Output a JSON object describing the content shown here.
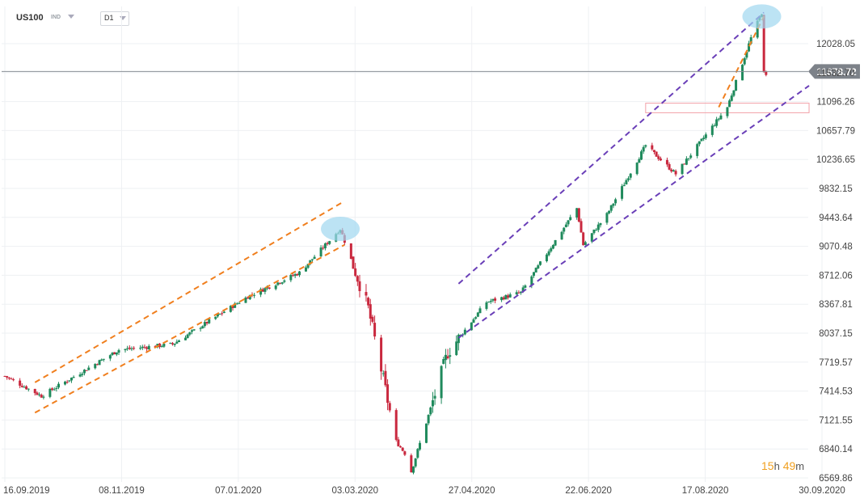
{
  "header": {
    "symbol": "US100",
    "exchange": "IND",
    "timeframe": "D1"
  },
  "countdown": {
    "hours": "15",
    "h_unit": "h",
    "minutes": "49",
    "m_unit": "m"
  },
  "chart_data": {
    "type": "candlestick",
    "symbol": "US100",
    "timeframe": "D1",
    "current_price": 11678.72,
    "current_price_label": "11678.72",
    "y_ticks": [
      "12028.05",
      "11532.70",
      "11096.26",
      "10657.79",
      "10236.65",
      "9832.15",
      "9443.64",
      "9070.48",
      "8712.06",
      "8367.81",
      "8037.15",
      "7719.57",
      "7414.53",
      "7121.55",
      "6840.14",
      "6569.86"
    ],
    "x_ticks": [
      "16.09.2019",
      "08.11.2019",
      "07.01.2020",
      "03.03.2020",
      "27.04.2020",
      "22.06.2020",
      "17.08.2020",
      "30.09.2020"
    ],
    "series_colors": {
      "up": "#1f8a5c",
      "down": "#c9283e"
    },
    "key_levels": [
      {
        "date": "2019-09-16",
        "close": 7850
      },
      {
        "date": "2019-10-03",
        "close": 7600
      },
      {
        "date": "2019-11-08",
        "close": 8180
      },
      {
        "date": "2019-12-03",
        "close": 8250
      },
      {
        "date": "2020-01-07",
        "close": 8850
      },
      {
        "date": "2020-01-31",
        "close": 9150
      },
      {
        "date": "2020-02-19",
        "close": 9700
      },
      {
        "date": "2020-03-03",
        "close": 8700
      },
      {
        "date": "2020-03-16",
        "close": 7030
      },
      {
        "date": "2020-03-20",
        "close": 6880
      },
      {
        "date": "2020-03-23",
        "close": 6650
      },
      {
        "date": "2020-04-09",
        "close": 8150
      },
      {
        "date": "2020-04-27",
        "close": 8780
      },
      {
        "date": "2020-05-13",
        "close": 8900
      },
      {
        "date": "2020-06-08",
        "close": 9960
      },
      {
        "date": "2020-06-11",
        "close": 9500
      },
      {
        "date": "2020-06-22",
        "close": 9880
      },
      {
        "date": "2020-07-10",
        "close": 10750
      },
      {
        "date": "2020-07-24",
        "close": 10390
      },
      {
        "date": "2020-08-17",
        "close": 11230
      },
      {
        "date": "2020-08-28",
        "close": 12100
      },
      {
        "date": "2020-09-02",
        "close": 12420
      },
      {
        "date": "2020-09-03",
        "close": 11650
      },
      {
        "date": "2020-09-04",
        "close": 11620
      }
    ],
    "channels": [
      {
        "color": "#f07f1e",
        "style": "dashed",
        "upper": [
          [
            "2019-09-30",
            7770
          ],
          [
            "2020-02-21",
            10050
          ]
        ],
        "lower": [
          [
            "2019-09-30",
            7390
          ],
          [
            "2020-02-21",
            9500
          ]
        ]
      },
      {
        "color": "#6a3fb8",
        "style": "dashed",
        "upper": [
          [
            "2020-04-14",
            9010
          ],
          [
            "2020-09-03",
            12420
          ]
        ],
        "lower": [
          [
            "2020-04-14",
            8330
          ],
          [
            "2020-09-24",
            11500
          ]
        ]
      },
      {
        "color": "#f07f1e",
        "style": "dashed",
        "upper": [
          [
            "2020-08-13",
            11230
          ],
          [
            "2020-09-03",
            12370
          ]
        ]
      }
    ],
    "highlights": [
      {
        "type": "ellipse",
        "color": "#9fd7ef",
        "at": [
          "2020-02-19",
          9700
        ]
      },
      {
        "type": "ellipse",
        "color": "#9fd7ef",
        "at": [
          "2020-09-02",
          12370
        ]
      },
      {
        "type": "zone",
        "color": "#f2a0a8",
        "x": [
          "2020-07-10",
          "2020-09-24"
        ],
        "y": [
          11160,
          11280
        ]
      }
    ],
    "grid": true
  }
}
